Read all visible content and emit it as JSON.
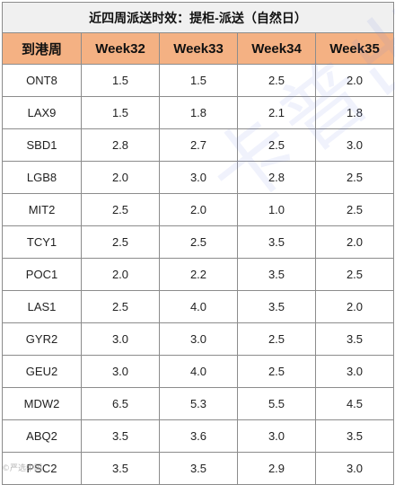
{
  "table": {
    "title": "近四周派送时效：提柜-派送（自然日）",
    "headers": [
      "到港周",
      "Week32",
      "Week33",
      "Week34",
      "Week35"
    ],
    "rows": [
      [
        "ONT8",
        "1.5",
        "1.5",
        "2.5",
        "2.0"
      ],
      [
        "LAX9",
        "1.5",
        "1.8",
        "2.1",
        "1.8"
      ],
      [
        "SBD1",
        "2.8",
        "2.7",
        "2.5",
        "3.0"
      ],
      [
        "LGB8",
        "2.0",
        "3.0",
        "2.8",
        "2.5"
      ],
      [
        "MIT2",
        "2.5",
        "2.0",
        "1.0",
        "2.5"
      ],
      [
        "TCY1",
        "2.5",
        "2.5",
        "3.5",
        "2.0"
      ],
      [
        "POC1",
        "2.0",
        "2.2",
        "3.5",
        "2.5"
      ],
      [
        "LAS1",
        "2.5",
        "4.0",
        "3.5",
        "2.0"
      ],
      [
        "GYR2",
        "3.0",
        "3.0",
        "2.5",
        "3.5"
      ],
      [
        "GEU2",
        "3.0",
        "4.0",
        "2.5",
        "3.0"
      ],
      [
        "MDW2",
        "6.5",
        "5.3",
        "5.5",
        "4.5"
      ],
      [
        "ABQ2",
        "3.5",
        "3.6",
        "3.0",
        "3.5"
      ],
      [
        "PSC2",
        "3.5",
        "3.5",
        "2.9",
        "3.0"
      ]
    ]
  },
  "watermark": {
    "text": "卡普出全球",
    "bottom_text": "©严选中国"
  },
  "colors": {
    "header_bg": "#f4b183",
    "title_bg": "#f0f0f0",
    "border": "#8c8c8c"
  }
}
